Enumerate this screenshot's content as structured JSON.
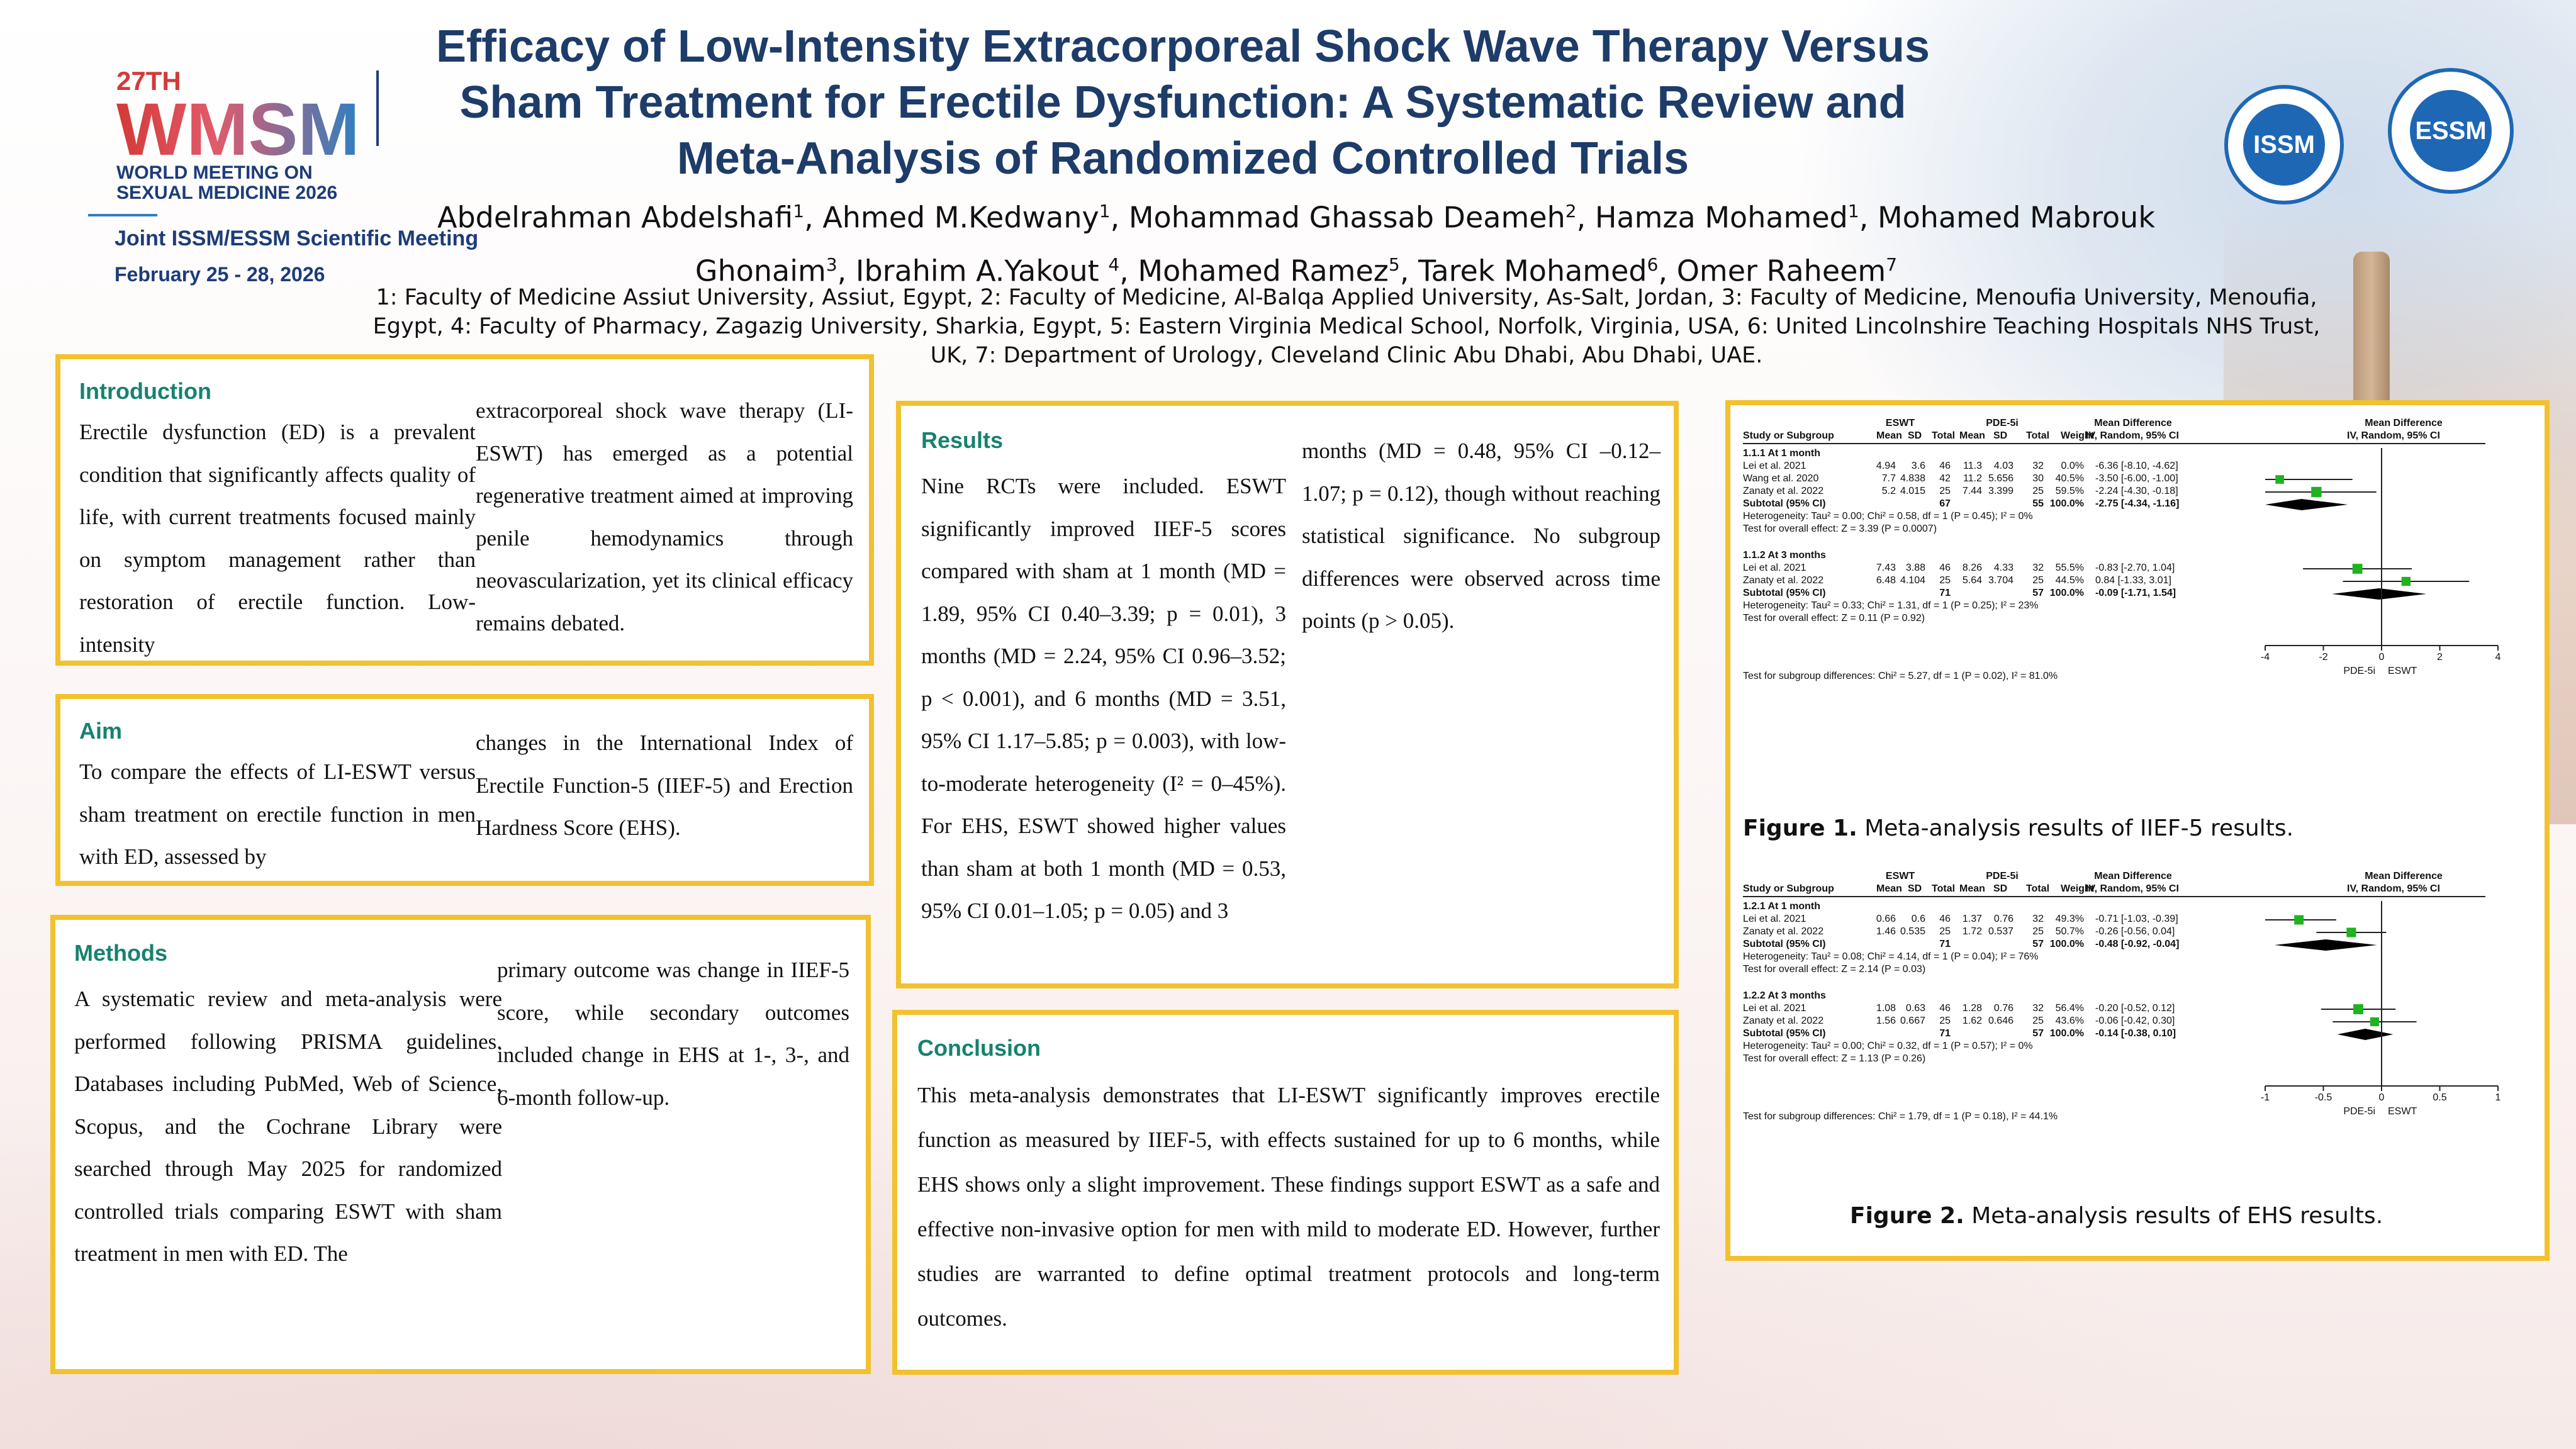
{
  "header": {
    "title": "Efficacy of Low-Intensity Extracorporeal Shock Wave Therapy Versus Sham Treatment for Erectile Dysfunction: A Systematic Review and Meta-Analysis of Randomized Controlled Trials",
    "authors_line1": [
      {
        "name": "Abdelrahman Abdelshafi",
        "sup": "1"
      },
      {
        "name": "Ahmed M.Kedwany",
        "sup": "1"
      },
      {
        "name": "Mohammad Ghassab Deameh",
        "sup": "2"
      },
      {
        "name": "Hamza Mohamed",
        "sup": "1"
      },
      {
        "name": "Mohamed Mabrouk"
      }
    ],
    "authors_line2": [
      {
        "name": "Ghonaim",
        "sup": "3"
      },
      {
        "name": "Ibrahim A.Yakout ",
        "sup": "4"
      },
      {
        "name": "Mohamed Ramez",
        "sup": "5"
      },
      {
        "name": "Tarek Mohamed",
        "sup": "6"
      },
      {
        "name": "Omer Raheem",
        "sup": "7"
      }
    ],
    "affiliations": "1: Faculty of Medicine Assiut University, Assiut, Egypt, 2: Faculty of Medicine, Al-Balqa Applied University, As-Salt, Jordan, 3: Faculty of Medicine, Menoufia University, Menoufia, Egypt, 4: Faculty of Pharmacy, Zagazig University, Sharkia, Egypt, 5: Eastern Virginia Medical School, Norfolk, Virginia, USA, 6: United Lincolnshire Teaching Hospitals NHS Trust, UK, 7: Department of Urology, Cleveland Clinic Abu Dhabi, Abu Dhabi, UAE."
  },
  "logo": {
    "edition": "27TH",
    "acronym": "WMSM",
    "line1": "WORLD MEETING ON",
    "line2": "SEXUAL MEDICINE 2026",
    "meeting": "Joint ISSM/ESSM Scientific Meeting",
    "dates": "February 25 - 28, 2026",
    "seal1": "ISSM",
    "seal2": "ESSM"
  },
  "introduction": {
    "heading": "Introduction",
    "col1": "Erectile dysfunction (ED) is a prevalent condition that significantly affects quality of life, with current treatments focused mainly on symptom management rather than restoration of erectile function. Low-intensity",
    "col2": "extracorporeal shock wave therapy (LI-ESWT) has emerged as a potential regenerative treatment aimed at improving penile hemodynamics through neovascularization, yet its clinical efficacy remains debated."
  },
  "aim": {
    "heading": "Aim",
    "col1": "To compare the effects of LI-ESWT versus sham treatment on erectile function in men with ED, assessed by",
    "col2": "changes in the International Index of Erectile Function-5 (IIEF-5) and Erection Hardness Score (EHS)."
  },
  "methods": {
    "heading": "Methods",
    "col1": "A systematic review and meta-analysis were performed following PRISMA guidelines. Databases including PubMed, Web of Science, Scopus, and the Cochrane Library were searched through May 2025 for randomized controlled trials comparing ESWT with sham treatment in men with ED. The",
    "col2": "primary outcome was change in IIEF-5 score, while secondary outcomes included change in EHS at 1-, 3-, and 6-month follow-up."
  },
  "results": {
    "heading": "Results",
    "col1": "Nine RCTs were included. ESWT significantly improved IIEF-5 scores compared with sham at 1 month (MD = 1.89, 95% CI 0.40–3.39; p = 0.01), 3 months (MD = 2.24, 95% CI 0.96–3.52; p < 0.001), and 6 months (MD = 3.51, 95% CI 1.17–5.85; p = 0.003), with low-to-moderate heterogeneity (I² = 0–45%). For EHS, ESWT showed higher values than sham at both 1 month (MD = 0.53, 95% CI 0.01–1.05; p = 0.05) and 3",
    "col2": "months (MD = 0.48, 95% CI –0.12–1.07; p = 0.12), though without reaching statistical significance. No subgroup differences were observed across time points (p > 0.05)."
  },
  "conclusion": {
    "heading": "Conclusion",
    "text": "This meta-analysis demonstrates that LI-ESWT significantly improves erectile function as measured by IIEF-5, with effects sustained for up to 6 months, while EHS shows only a slight improvement. These findings support ESWT as a safe and effective non-invasive option for men with mild to moderate ED. However, further studies are warranted to define optimal treatment protocols and long-term outcomes."
  },
  "chart_data": [
    {
      "type": "forest",
      "caption_label": "Figure 1.",
      "caption_text": " Meta-analysis results of IIEF-5 results.",
      "headers": {
        "group1": "ESWT",
        "group2": "PDE-5i",
        "md": "Mean Difference",
        "md_sub": "IV, Random, 95% CI",
        "md_plot": "Mean Difference",
        "md_plot_sub": "IV, Random, 95% CI",
        "cols": [
          "Study or Subgroup",
          "Mean",
          "SD",
          "Total",
          "Mean",
          "SD",
          "Total",
          "Weight"
        ]
      },
      "xlim": [
        -4,
        4
      ],
      "ticks": [
        "-4",
        "-2",
        "0",
        "2",
        "4"
      ],
      "tick_values": [
        -4,
        -2,
        0,
        2,
        4
      ],
      "axis_left_label": "PDE-5i",
      "axis_right_label": "ESWT",
      "subgroups": [
        {
          "label": "1.1.1 At 1 month",
          "studies": [
            {
              "name": "Lei et al. 2021",
              "m1": "4.94",
              "sd1": "3.6",
              "n1": "46",
              "m2": "11.3",
              "sd2": "4.03",
              "n2": "32",
              "weight": "0.0%",
              "ci": "-6.36 [-8.10, -4.62]",
              "md": -6.36,
              "lo": -8.1,
              "hi": -4.62,
              "w": 0.0
            },
            {
              "name": "Wang et al. 2020",
              "m1": "7.7",
              "sd1": "4.838",
              "n1": "42",
              "m2": "11.2",
              "sd2": "5.656",
              "n2": "30",
              "weight": "40.5%",
              "ci": "-3.50 [-6.00, -1.00]",
              "md": -3.5,
              "lo": -6.0,
              "hi": -1.0,
              "w": 40.5
            },
            {
              "name": "Zanaty et al. 2022",
              "m1": "5.2",
              "sd1": "4.015",
              "n1": "25",
              "m2": "7.44",
              "sd2": "3.399",
              "n2": "25",
              "weight": "59.5%",
              "ci": "-2.24 [-4.30, -0.18]",
              "md": -2.24,
              "lo": -4.3,
              "hi": -0.18,
              "w": 59.5
            }
          ],
          "subtotal": {
            "label": "Subtotal (95% CI)",
            "n1": "67",
            "n2": "55",
            "weight": "100.0%",
            "ci": "-2.75 [-4.34, -1.16]",
            "md": -2.75,
            "lo": -4.34,
            "hi": -1.16
          },
          "heterogeneity": "Heterogeneity: Tau² = 0.00; Chi² = 0.58, df = 1 (P = 0.45); I² = 0%",
          "overall": "Test for overall effect: Z = 3.39 (P = 0.0007)"
        },
        {
          "label": "1.1.2 At 3 months",
          "studies": [
            {
              "name": "Lei et al. 2021",
              "m1": "7.43",
              "sd1": "3.88",
              "n1": "46",
              "m2": "8.26",
              "sd2": "4.33",
              "n2": "32",
              "weight": "55.5%",
              "ci": "-0.83 [-2.70, 1.04]",
              "md": -0.83,
              "lo": -2.7,
              "hi": 1.04,
              "w": 55.5
            },
            {
              "name": "Zanaty et al. 2022",
              "m1": "6.48",
              "sd1": "4.104",
              "n1": "25",
              "m2": "5.64",
              "sd2": "3.704",
              "n2": "25",
              "weight": "44.5%",
              "ci": "0.84 [-1.33, 3.01]",
              "md": 0.84,
              "lo": -1.33,
              "hi": 3.01,
              "w": 44.5
            }
          ],
          "subtotal": {
            "label": "Subtotal (95% CI)",
            "n1": "71",
            "n2": "57",
            "weight": "100.0%",
            "ci": "-0.09 [-1.71, 1.54]",
            "md": -0.09,
            "lo": -1.71,
            "hi": 1.54
          },
          "heterogeneity": "Heterogeneity: Tau² = 0.33; Chi² = 1.31, df = 1 (P = 0.25); I² = 23%",
          "overall": "Test for overall effect: Z = 0.11 (P = 0.92)"
        }
      ],
      "subgroup_test": "Test for subgroup differences: Chi² = 5.27, df = 1 (P = 0.02), I² = 81.0%"
    },
    {
      "type": "forest",
      "caption_label": "Figure 2.",
      "caption_text": " Meta-analysis results of EHS results.",
      "headers": {
        "group1": "ESWT",
        "group2": "PDE-5i",
        "md": "Mean Difference",
        "md_sub": "IV, Random, 95% CI",
        "md_plot": "Mean Difference",
        "md_plot_sub": "IV, Random, 95% CI",
        "cols": [
          "Study or Subgroup",
          "Mean",
          "SD",
          "Total",
          "Mean",
          "SD",
          "Total",
          "Weight"
        ]
      },
      "xlim": [
        -1,
        1
      ],
      "ticks": [
        "-1",
        "-0.5",
        "0",
        "0.5",
        "1"
      ],
      "tick_values": [
        -1,
        -0.5,
        0,
        0.5,
        1
      ],
      "axis_left_label": "PDE-5i",
      "axis_right_label": "ESWT",
      "subgroups": [
        {
          "label": "1.2.1 At 1 month",
          "studies": [
            {
              "name": "Lei et al. 2021",
              "m1": "0.66",
              "sd1": "0.6",
              "n1": "46",
              "m2": "1.37",
              "sd2": "0.76",
              "n2": "32",
              "weight": "49.3%",
              "ci": "-0.71 [-1.03, -0.39]",
              "md": -0.71,
              "lo": -1.03,
              "hi": -0.39,
              "w": 49.3
            },
            {
              "name": "Zanaty et al. 2022",
              "m1": "1.46",
              "sd1": "0.535",
              "n1": "25",
              "m2": "1.72",
              "sd2": "0.537",
              "n2": "25",
              "weight": "50.7%",
              "ci": "-0.26 [-0.56, 0.04]",
              "md": -0.26,
              "lo": -0.56,
              "hi": 0.04,
              "w": 50.7
            }
          ],
          "subtotal": {
            "label": "Subtotal (95% CI)",
            "n1": "71",
            "n2": "57",
            "weight": "100.0%",
            "ci": "-0.48 [-0.92, -0.04]",
            "md": -0.48,
            "lo": -0.92,
            "hi": -0.04
          },
          "heterogeneity": "Heterogeneity: Tau² = 0.08; Chi² = 4.14, df = 1 (P = 0.04); I² = 76%",
          "overall": "Test for overall effect: Z = 2.14 (P = 0.03)"
        },
        {
          "label": "1.2.2 At 3 months",
          "studies": [
            {
              "name": "Lei et al. 2021",
              "m1": "1.08",
              "sd1": "0.63",
              "n1": "46",
              "m2": "1.28",
              "sd2": "0.76",
              "n2": "32",
              "weight": "56.4%",
              "ci": "-0.20 [-0.52, 0.12]",
              "md": -0.2,
              "lo": -0.52,
              "hi": 0.12,
              "w": 56.4
            },
            {
              "name": "Zanaty et al. 2022",
              "m1": "1.56",
              "sd1": "0.667",
              "n1": "25",
              "m2": "1.62",
              "sd2": "0.646",
              "n2": "25",
              "weight": "43.6%",
              "ci": "-0.06 [-0.42, 0.30]",
              "md": -0.06,
              "lo": -0.42,
              "hi": 0.3,
              "w": 43.6
            }
          ],
          "subtotal": {
            "label": "Subtotal (95% CI)",
            "n1": "71",
            "n2": "57",
            "weight": "100.0%",
            "ci": "-0.14 [-0.38, 0.10]",
            "md": -0.14,
            "lo": -0.38,
            "hi": 0.1
          },
          "heterogeneity": "Heterogeneity: Tau² = 0.00; Chi² = 0.32, df = 1 (P = 0.57); I² = 0%",
          "overall": "Test for overall effect: Z = 1.13 (P = 0.26)"
        }
      ],
      "subgroup_test": "Test for subgroup differences: Chi² = 1.79, df = 1 (P = 0.18), I² = 44.1%"
    }
  ]
}
